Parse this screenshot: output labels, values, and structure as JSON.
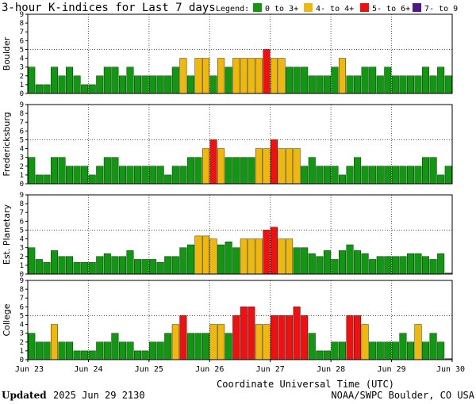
{
  "title": "3-hour K-indices for Last 7 days",
  "legend": {
    "label": "Legend:",
    "items": [
      {
        "label": "0 to 3+",
        "color": "#109810"
      },
      {
        "label": "4- to 4+",
        "color": "#f0b808"
      },
      {
        "label": "5- to 6+",
        "color": "#f01010"
      },
      {
        "label": "7- to 9",
        "color": "#501888"
      }
    ]
  },
  "footer": {
    "updated_label": "Updated",
    "updated_value": "2025 Jun 29 2130",
    "source": "NOAA/SWPC Boulder, CO USA"
  },
  "chart_data": {
    "type": "bar",
    "xlabel": "Coordinate Universal Time (UTC)",
    "x_ticks": [
      "Jun 23",
      "Jun 24",
      "Jun 25",
      "Jun 26",
      "Jun 27",
      "Jun 28",
      "Jun 29",
      "Jun 30"
    ],
    "ylim": [
      0,
      9
    ],
    "y_ticks": [
      0,
      1,
      2,
      3,
      4,
      5,
      6,
      7,
      8,
      9
    ],
    "grid": true,
    "panels": [
      {
        "name": "Boulder",
        "values": [
          3,
          1,
          1,
          3,
          2,
          3,
          2,
          1,
          1,
          2,
          3,
          3,
          2,
          3,
          2,
          2,
          2,
          2,
          2,
          3,
          4,
          2,
          4,
          4,
          2,
          4,
          3,
          4,
          4,
          4,
          4,
          5,
          4,
          4,
          3,
          3,
          3,
          2,
          2,
          2,
          3,
          4,
          2,
          2,
          3,
          3,
          2,
          3,
          2,
          2,
          2,
          2,
          3,
          2,
          3,
          2,
          0
        ]
      },
      {
        "name": "Fredericksburg",
        "values": [
          3,
          1,
          1,
          3,
          3,
          2,
          2,
          2,
          1,
          2,
          3,
          3,
          2,
          2,
          2,
          2,
          2,
          2,
          1,
          2,
          2,
          3,
          3,
          4,
          5,
          4,
          3,
          3,
          3,
          3,
          4,
          4,
          5,
          4,
          4,
          4,
          2,
          3,
          2,
          2,
          2,
          1,
          2,
          3,
          2,
          2,
          2,
          2,
          2,
          2,
          2,
          2,
          3,
          3,
          1,
          2,
          0
        ]
      },
      {
        "name": "Est. Planetary",
        "values": [
          3,
          1.67,
          1.33,
          2.67,
          2,
          2,
          1.33,
          1.33,
          1.33,
          2,
          2.33,
          2,
          2,
          2.67,
          1.67,
          1.67,
          1.67,
          1.33,
          2,
          2,
          3,
          3.33,
          4.33,
          4.33,
          4,
          3.33,
          3.67,
          3,
          4,
          4,
          4,
          5,
          5.33,
          4,
          4,
          3,
          3,
          2.33,
          2,
          2.67,
          1.67,
          2.67,
          3.33,
          2.67,
          2.33,
          1.67,
          2,
          2,
          2,
          2,
          2.33,
          2.33,
          2,
          1.67,
          2.33,
          0,
          0
        ]
      },
      {
        "name": "College",
        "values": [
          3,
          2,
          2,
          4,
          2,
          2,
          1,
          1,
          1,
          2,
          2,
          3,
          2,
          2,
          1,
          1,
          2,
          2,
          3,
          4,
          5,
          3,
          3,
          3,
          4,
          4,
          3,
          5,
          6,
          6,
          4,
          4,
          5,
          5,
          5,
          6,
          5,
          3,
          1,
          1,
          2,
          2,
          5,
          5,
          4,
          2,
          2,
          2,
          2,
          3,
          2,
          4,
          2,
          3,
          2,
          0,
          0
        ]
      }
    ]
  }
}
